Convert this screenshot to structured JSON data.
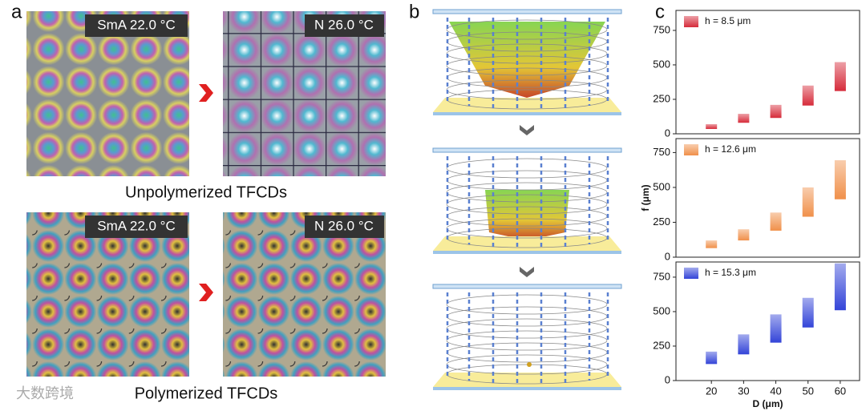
{
  "panel_labels": [
    "a",
    "b",
    "c"
  ],
  "panel_a": {
    "images": [
      {
        "label": "SmA 22.0 °C"
      },
      {
        "label": "N 26.0 °C"
      },
      {
        "label": "SmA 22.0 °C"
      },
      {
        "label": "N 26.0 °C"
      }
    ],
    "captions": [
      "Unpolymerized TFCDs",
      "Polymerized TFCDs"
    ]
  },
  "watermark": "大数跨境",
  "chart_data": [
    {
      "type": "floating-bar",
      "x": [
        20,
        30,
        40,
        50,
        60
      ],
      "xlim": [
        9,
        66
      ],
      "ylim": [
        0,
        895
      ],
      "yticks": [
        0,
        250,
        500,
        750
      ],
      "legend": "upper left",
      "series": [
        {
          "name": "h = 8.5 μm",
          "color": "#d62b3a",
          "low": [
            35,
            80,
            115,
            205,
            310
          ],
          "high": [
            70,
            145,
            210,
            350,
            520
          ]
        }
      ]
    },
    {
      "type": "floating-bar",
      "x": [
        20,
        30,
        40,
        50,
        60
      ],
      "xlim": [
        9,
        66
      ],
      "ylim": [
        0,
        850
      ],
      "yticks": [
        0,
        250,
        500,
        750
      ],
      "legend": "upper left",
      "y_label": "f (μm)",
      "series": [
        {
          "name": "h = 12.6 μm",
          "color": "#f0904a",
          "low": [
            65,
            120,
            190,
            290,
            415
          ],
          "high": [
            120,
            200,
            320,
            500,
            695
          ]
        }
      ]
    },
    {
      "type": "floating-bar",
      "x": [
        20,
        30,
        40,
        50,
        60
      ],
      "xlim": [
        9,
        66
      ],
      "ylim": [
        0,
        860
      ],
      "yticks": [
        0,
        250,
        500,
        750
      ],
      "xticks": [
        20,
        30,
        40,
        50,
        60
      ],
      "x_label": "D (μm)",
      "legend": "upper left",
      "series": [
        {
          "name": "h = 15.3 μm",
          "color": "#3344d8",
          "low": [
            120,
            190,
            275,
            385,
            510
          ],
          "high": [
            210,
            335,
            480,
            600,
            850
          ]
        }
      ]
    }
  ]
}
